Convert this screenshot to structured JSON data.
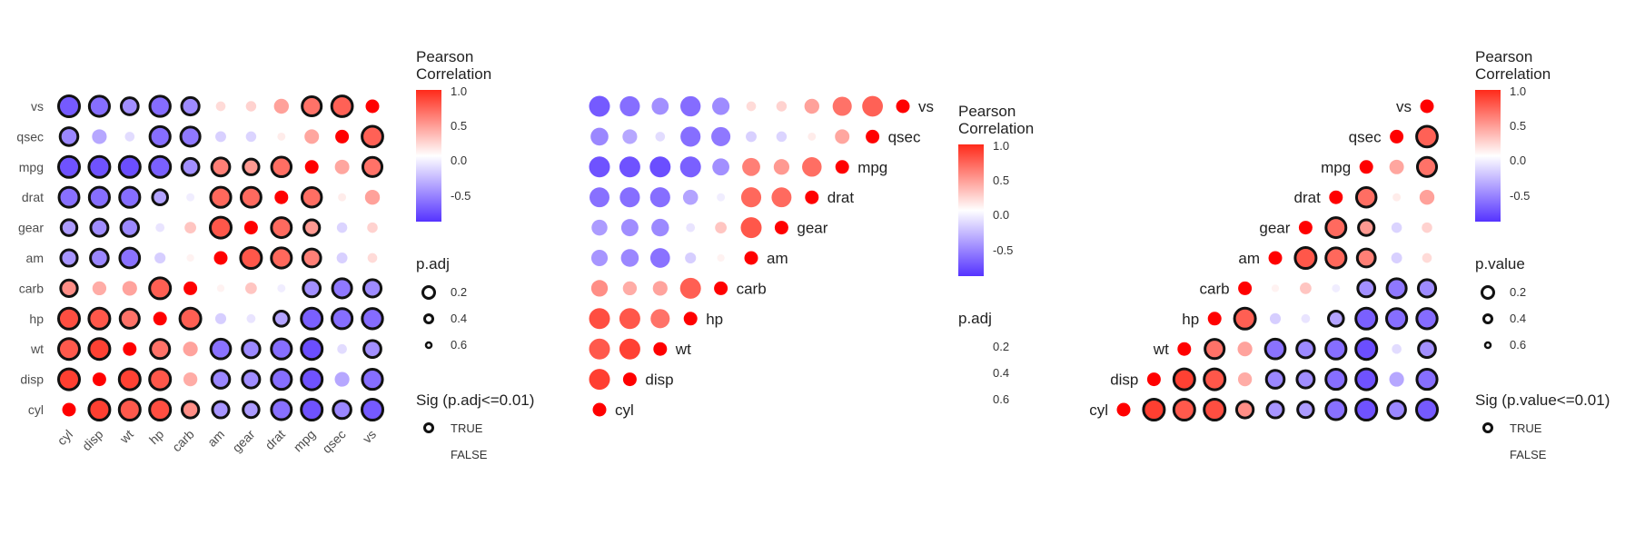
{
  "chart_data": [
    {
      "type": "heatmap",
      "variant": "full correlation matrix, circle markers sized by p-value, bold outline when significant",
      "x_labels": [
        "cyl",
        "disp",
        "wt",
        "hp",
        "carb",
        "am",
        "gear",
        "drat",
        "mpg",
        "qsec",
        "vs"
      ],
      "y_labels_top_to_bottom": [
        "vs",
        "qsec",
        "mpg",
        "drat",
        "gear",
        "am",
        "carb",
        "hp",
        "wt",
        "disp",
        "cyl"
      ],
      "diagonal": "red marker (r = 1.0)",
      "legend": {
        "color_title": [
          "Pearson",
          "Correlation"
        ],
        "color_ticks": [
          "1.0",
          "0.5",
          "0.0",
          "-0.5"
        ],
        "size_title": "p.adj",
        "size_ticks": [
          "0.2",
          "0.4",
          "0.6"
        ],
        "sig_title": "Sig (p.adj<=0.01)",
        "sig_entries": [
          "TRUE",
          "FALSE"
        ]
      }
    },
    {
      "type": "heatmap",
      "variant": "lower-triangle correlation matrix with variable labels on the diagonal, no significance outlines",
      "x_labels": [
        "cyl",
        "disp",
        "wt",
        "hp",
        "carb",
        "am",
        "gear",
        "drat",
        "mpg",
        "qsec",
        "vs"
      ],
      "diagonal_labels_top_to_bottom": [
        "vs",
        "qsec",
        "mpg",
        "drat",
        "gear",
        "am",
        "carb",
        "hp",
        "wt",
        "disp",
        "cyl"
      ],
      "legend": {
        "color_title": [
          "Pearson",
          "Correlation"
        ],
        "color_ticks": [
          "1.0",
          "0.5",
          "0.0",
          "-0.5"
        ],
        "size_title": "p.adj",
        "size_ticks": [
          "0.2",
          "0.4",
          "0.6"
        ]
      }
    },
    {
      "type": "heatmap",
      "variant": "lower-triangle correlation matrix (right aligned) with labels left of diagonal, outlines when significant",
      "diagonal_labels_top_to_bottom": [
        "vs",
        "qsec",
        "mpg",
        "drat",
        "gear",
        "am",
        "carb",
        "hp",
        "wt",
        "disp",
        "cyl"
      ],
      "legend": {
        "color_title": [
          "Pearson",
          "Correlation"
        ],
        "color_ticks": [
          "1.0",
          "0.5",
          "0.0",
          "-0.5"
        ],
        "size_title": "p.value",
        "size_ticks": [
          "0.2",
          "0.4",
          "0.6"
        ],
        "sig_title": "Sig (p.value<=0.01)",
        "sig_entries": [
          "TRUE",
          "FALSE"
        ]
      }
    }
  ],
  "variables": [
    "cyl",
    "disp",
    "wt",
    "hp",
    "carb",
    "am",
    "gear",
    "drat",
    "mpg",
    "qsec",
    "vs"
  ],
  "correlations": [
    [
      1.0,
      0.9,
      0.78,
      0.83,
      0.53,
      -0.52,
      -0.49,
      -0.7,
      -0.85,
      -0.59,
      -0.81
    ],
    [
      0.9,
      1.0,
      0.89,
      0.79,
      0.39,
      -0.59,
      -0.56,
      -0.71,
      -0.85,
      -0.43,
      -0.71
    ],
    [
      0.78,
      0.89,
      1.0,
      0.66,
      0.43,
      -0.69,
      -0.58,
      -0.71,
      -0.87,
      -0.17,
      -0.55
    ],
    [
      0.83,
      0.79,
      0.66,
      1.0,
      0.75,
      -0.24,
      -0.13,
      -0.45,
      -0.78,
      -0.71,
      -0.72
    ],
    [
      0.53,
      0.39,
      0.43,
      0.75,
      1.0,
      0.06,
      0.27,
      -0.09,
      -0.55,
      -0.66,
      -0.57
    ],
    [
      -0.52,
      -0.59,
      -0.69,
      -0.24,
      0.06,
      1.0,
      0.79,
      0.71,
      0.6,
      -0.23,
      0.17
    ],
    [
      -0.49,
      -0.56,
      -0.58,
      -0.13,
      0.27,
      0.79,
      1.0,
      0.7,
      0.48,
      -0.21,
      0.21
    ],
    [
      -0.7,
      -0.71,
      -0.71,
      -0.45,
      -0.09,
      0.71,
      0.7,
      1.0,
      0.68,
      0.09,
      0.44
    ],
    [
      -0.85,
      -0.85,
      -0.87,
      -0.78,
      -0.55,
      0.6,
      0.48,
      0.68,
      1.0,
      0.42,
      0.66
    ],
    [
      -0.59,
      -0.43,
      -0.17,
      -0.71,
      -0.66,
      -0.23,
      -0.21,
      0.09,
      0.42,
      1.0,
      0.74
    ],
    [
      -0.81,
      -0.71,
      -0.55,
      -0.72,
      -0.57,
      0.17,
      0.21,
      0.44,
      0.66,
      0.74,
      1.0
    ]
  ],
  "significant_pairs_padj": [
    [
      0,
      1
    ],
    [
      0,
      2
    ],
    [
      0,
      3
    ],
    [
      0,
      4
    ],
    [
      0,
      5
    ],
    [
      0,
      6
    ],
    [
      0,
      7
    ],
    [
      0,
      8
    ],
    [
      0,
      9
    ],
    [
      0,
      10
    ],
    [
      1,
      2
    ],
    [
      1,
      3
    ],
    [
      1,
      5
    ],
    [
      1,
      6
    ],
    [
      1,
      7
    ],
    [
      1,
      8
    ],
    [
      1,
      10
    ],
    [
      2,
      3
    ],
    [
      2,
      5
    ],
    [
      2,
      6
    ],
    [
      2,
      7
    ],
    [
      2,
      8
    ],
    [
      2,
      10
    ],
    [
      3,
      4
    ],
    [
      3,
      7
    ],
    [
      3,
      8
    ],
    [
      3,
      9
    ],
    [
      3,
      10
    ],
    [
      4,
      8
    ],
    [
      4,
      9
    ],
    [
      4,
      10
    ],
    [
      5,
      6
    ],
    [
      5,
      7
    ],
    [
      5,
      8
    ],
    [
      6,
      7
    ],
    [
      6,
      8
    ],
    [
      7,
      8
    ],
    [
      8,
      10
    ],
    [
      9,
      10
    ]
  ],
  "colors": {
    "positive": "#ff2a1a",
    "mid": "#ffffff",
    "negative": "#5533ff",
    "diagonal": "#ff0000",
    "outline": "#111111",
    "text": "#222222",
    "axis_text": "#4d4d4d"
  }
}
